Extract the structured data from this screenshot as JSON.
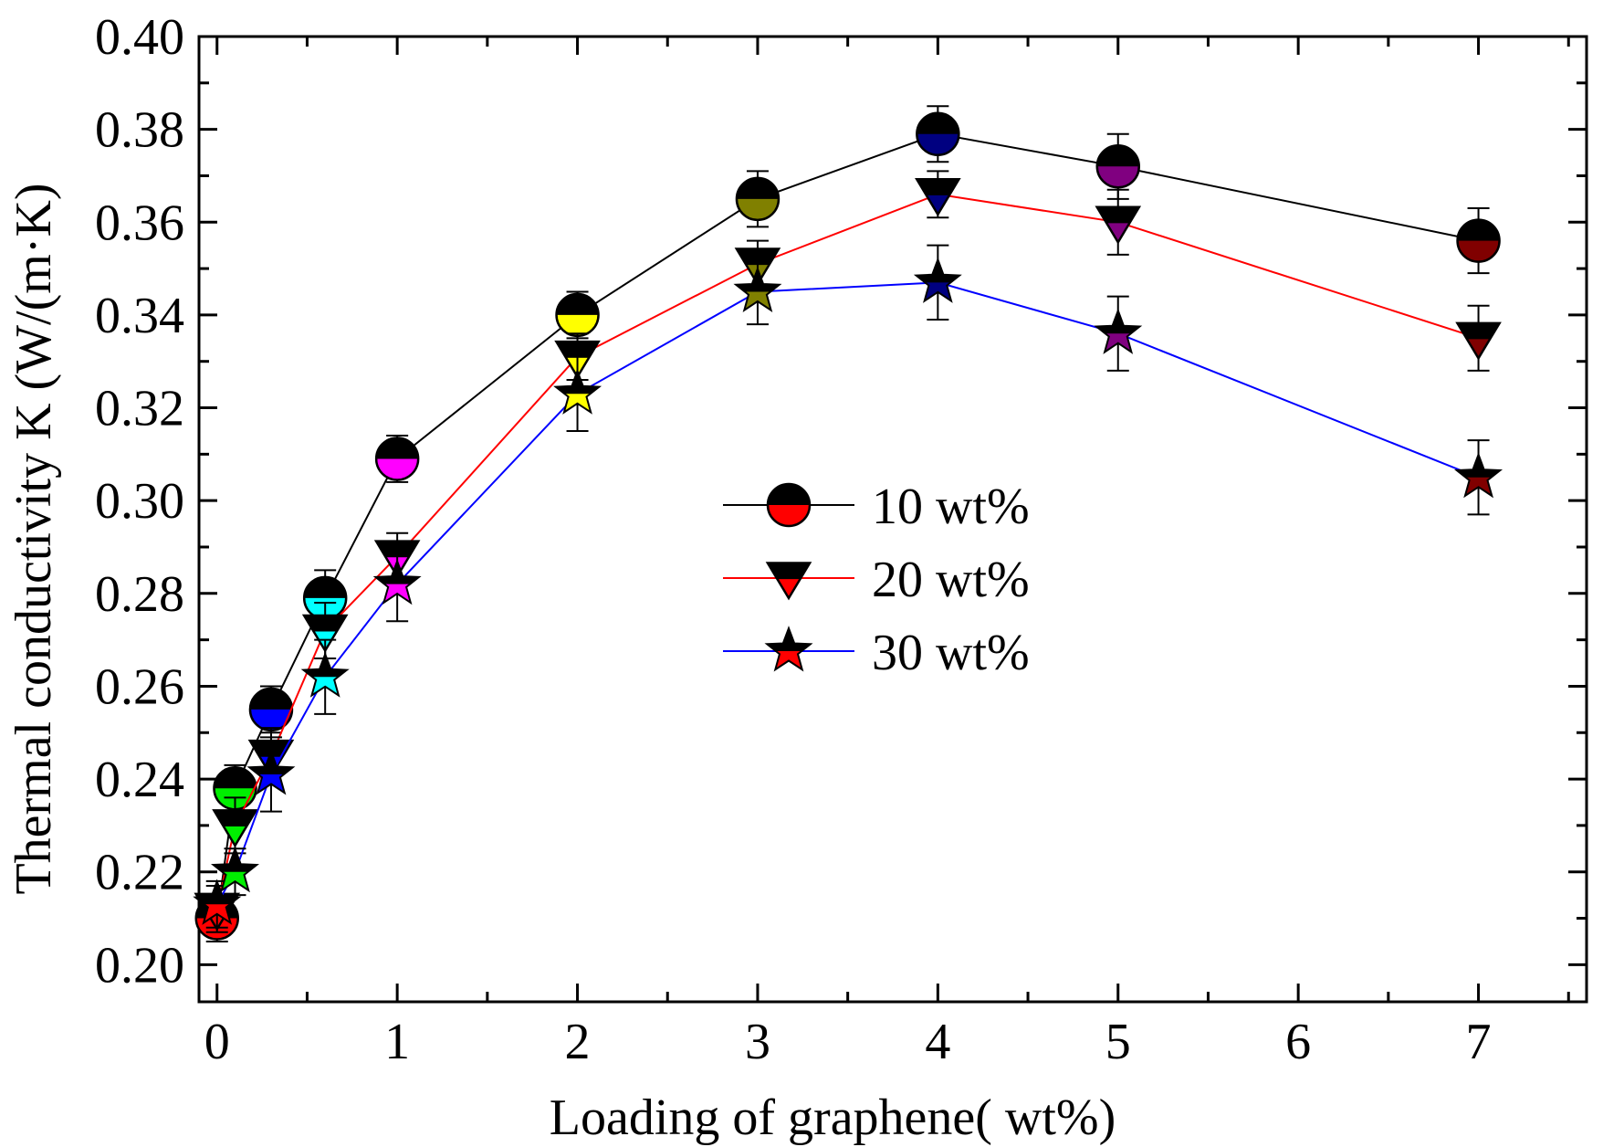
{
  "chart_data": {
    "type": "line",
    "title": "",
    "xlabel": "Loading of graphene(   wt%)",
    "ylabel": "Thermal conductivity K (W/(m·K)",
    "xlim": [
      -0.1,
      7.6
    ],
    "ylim": [
      0.192,
      0.4
    ],
    "xticks": [
      0,
      1,
      2,
      3,
      4,
      5,
      6,
      7
    ],
    "yticks": [
      0.2,
      0.22,
      0.24,
      0.26,
      0.28,
      0.3,
      0.32,
      0.34,
      0.36,
      0.38,
      0.4
    ],
    "x": [
      0,
      0.1,
      0.3,
      0.6,
      1,
      2,
      3,
      4,
      5,
      7
    ],
    "point_colors": [
      "#ff0000",
      "#00ee00",
      "#0000ff",
      "#00ffff",
      "#ff00ff",
      "#ffff00",
      "#808000",
      "#000080",
      "#800080",
      "#800000"
    ],
    "series": [
      {
        "name": "10 wt%",
        "marker": "circle",
        "line_color": "#000000",
        "values": [
          0.21,
          0.238,
          0.255,
          0.279,
          0.309,
          0.34,
          0.365,
          0.379,
          0.372,
          0.356
        ],
        "errors": [
          0.005,
          0.005,
          0.005,
          0.006,
          0.005,
          0.005,
          0.006,
          0.006,
          0.007,
          0.007
        ]
      },
      {
        "name": "20 wt%",
        "marker": "triangle-down",
        "line_color": "#ff0000",
        "values": [
          0.212,
          0.23,
          0.245,
          0.272,
          0.288,
          0.331,
          0.351,
          0.366,
          0.36,
          0.335
        ],
        "errors": [
          0.005,
          0.006,
          0.006,
          0.006,
          0.005,
          0.005,
          0.005,
          0.005,
          0.007,
          0.007
        ]
      },
      {
        "name": "30 wt%",
        "marker": "star",
        "line_color": "#0000ff",
        "values": [
          0.213,
          0.22,
          0.241,
          0.262,
          0.282,
          0.323,
          0.345,
          0.347,
          0.336,
          0.305
        ],
        "errors": [
          0.005,
          0.005,
          0.008,
          0.008,
          0.008,
          0.008,
          0.007,
          0.008,
          0.008,
          0.008
        ]
      }
    ]
  }
}
